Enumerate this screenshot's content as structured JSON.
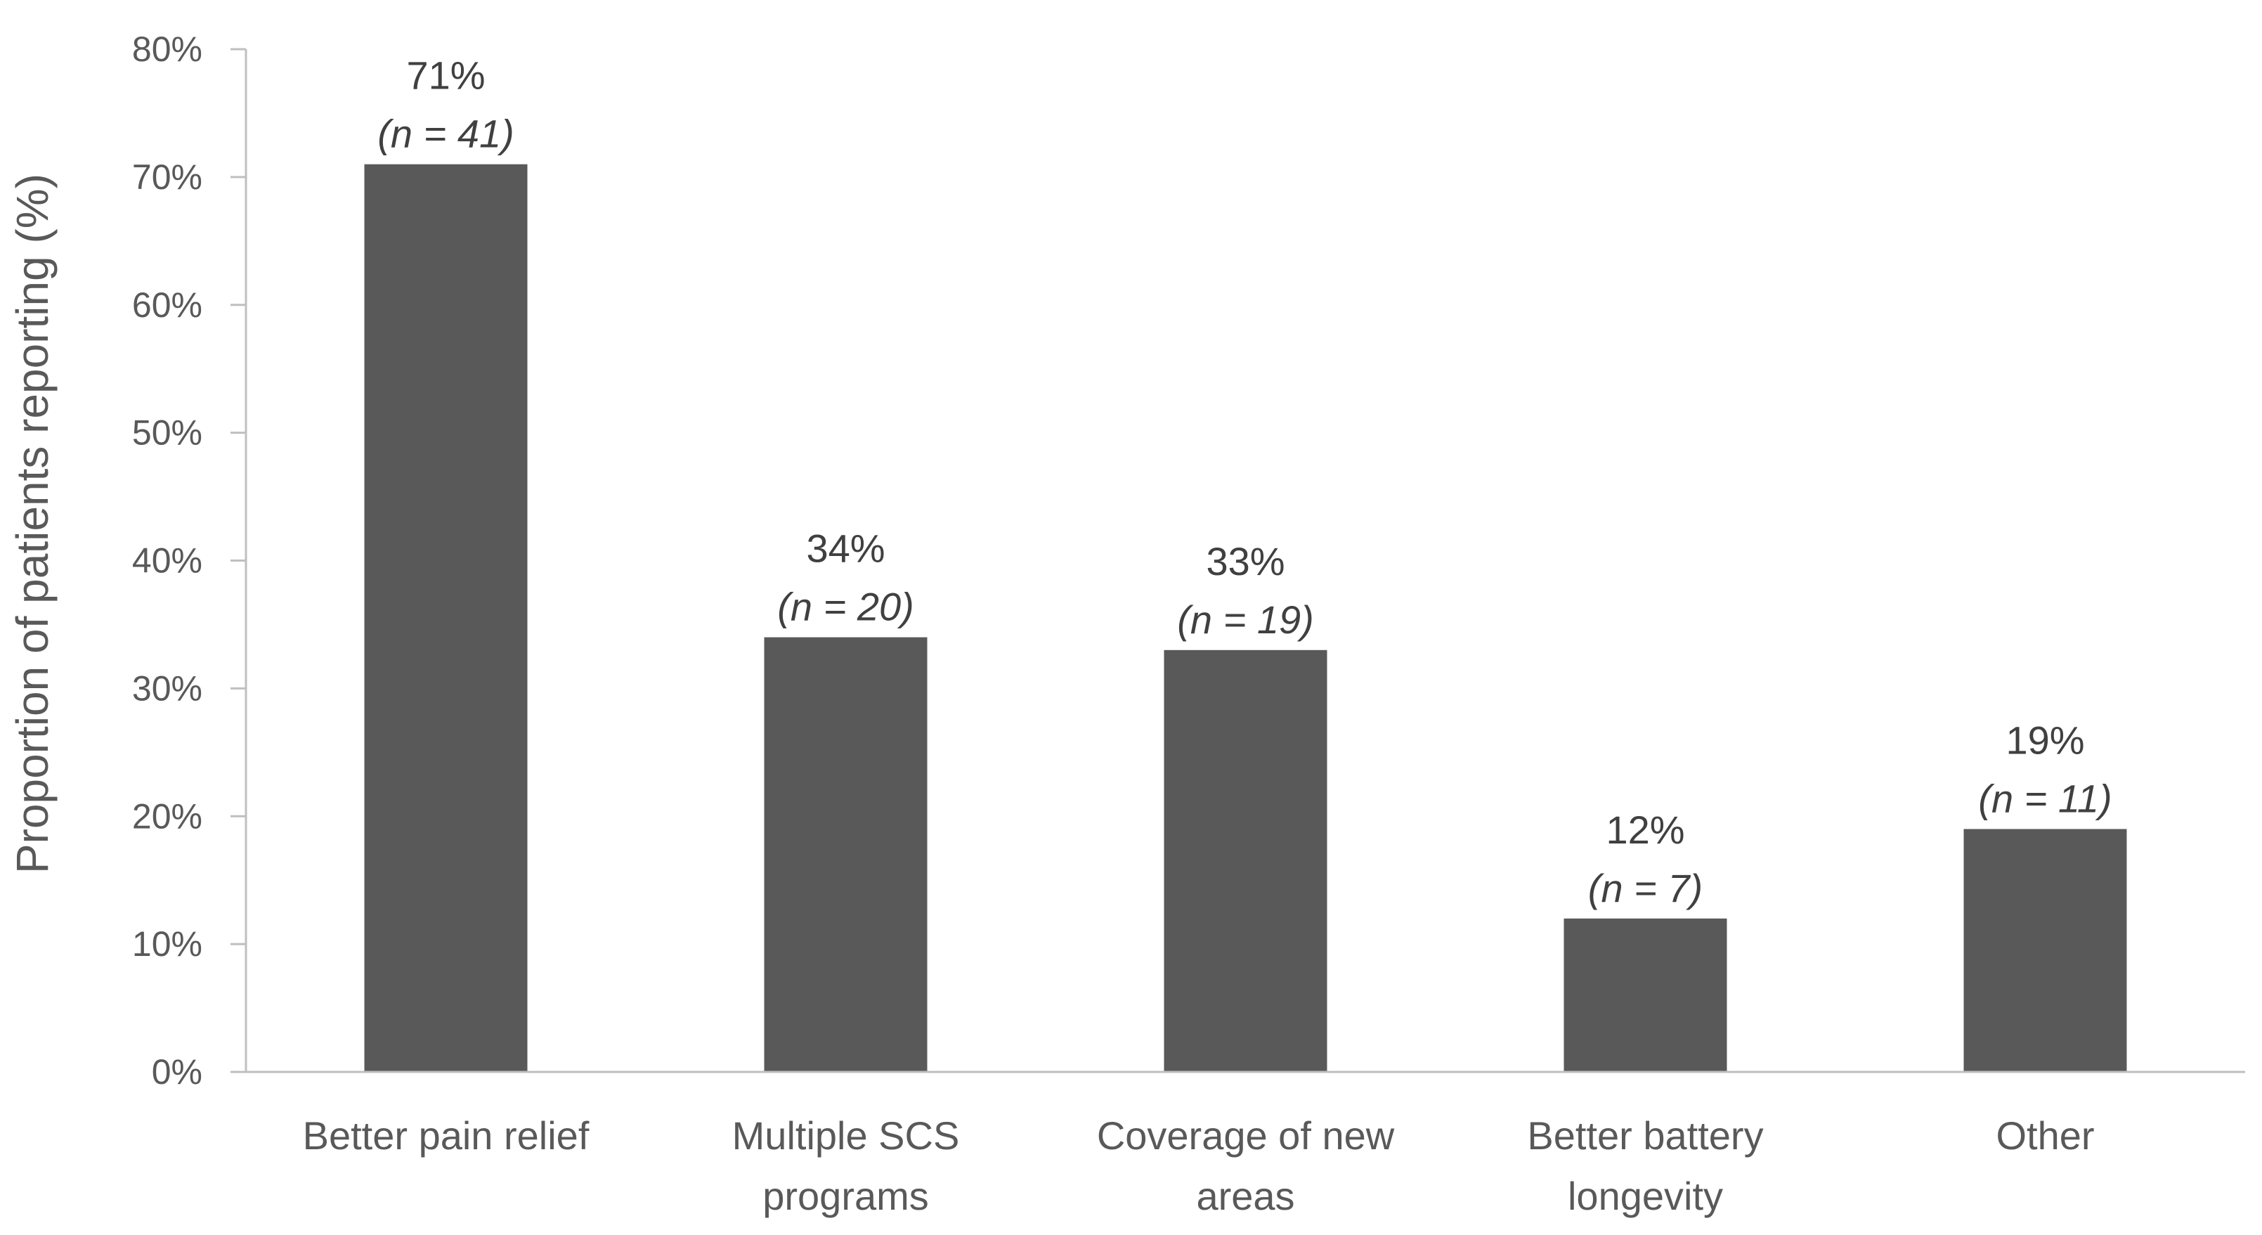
{
  "chart_data": {
    "type": "bar",
    "categories": [
      [
        "Better pain relief"
      ],
      [
        "Multiple SCS",
        "programs"
      ],
      [
        "Coverage of new",
        "areas"
      ],
      [
        "Better battery",
        "longevity"
      ],
      [
        "Other"
      ]
    ],
    "values": [
      71,
      34,
      33,
      12,
      19
    ],
    "value_labels": [
      "71%",
      "34%",
      "33%",
      "12%",
      "19%"
    ],
    "count_labels": [
      "(n = 41)",
      "(n = 20)",
      "(n = 19)",
      "(n = 7)",
      "(n = 11)"
    ],
    "title": "",
    "xlabel": "",
    "ylabel": "Proportion of patients reporting (%)",
    "ylim": [
      0,
      80
    ],
    "yticks": [
      0,
      10,
      20,
      30,
      40,
      50,
      60,
      70,
      80
    ],
    "ytick_labels": [
      "0%",
      "10%",
      "20%",
      "30%",
      "40%",
      "50%",
      "60%",
      "70%",
      "80%"
    ],
    "grid": false,
    "legend": "none",
    "bar_color": "#595959",
    "axis_color": "#bfbfbf"
  }
}
